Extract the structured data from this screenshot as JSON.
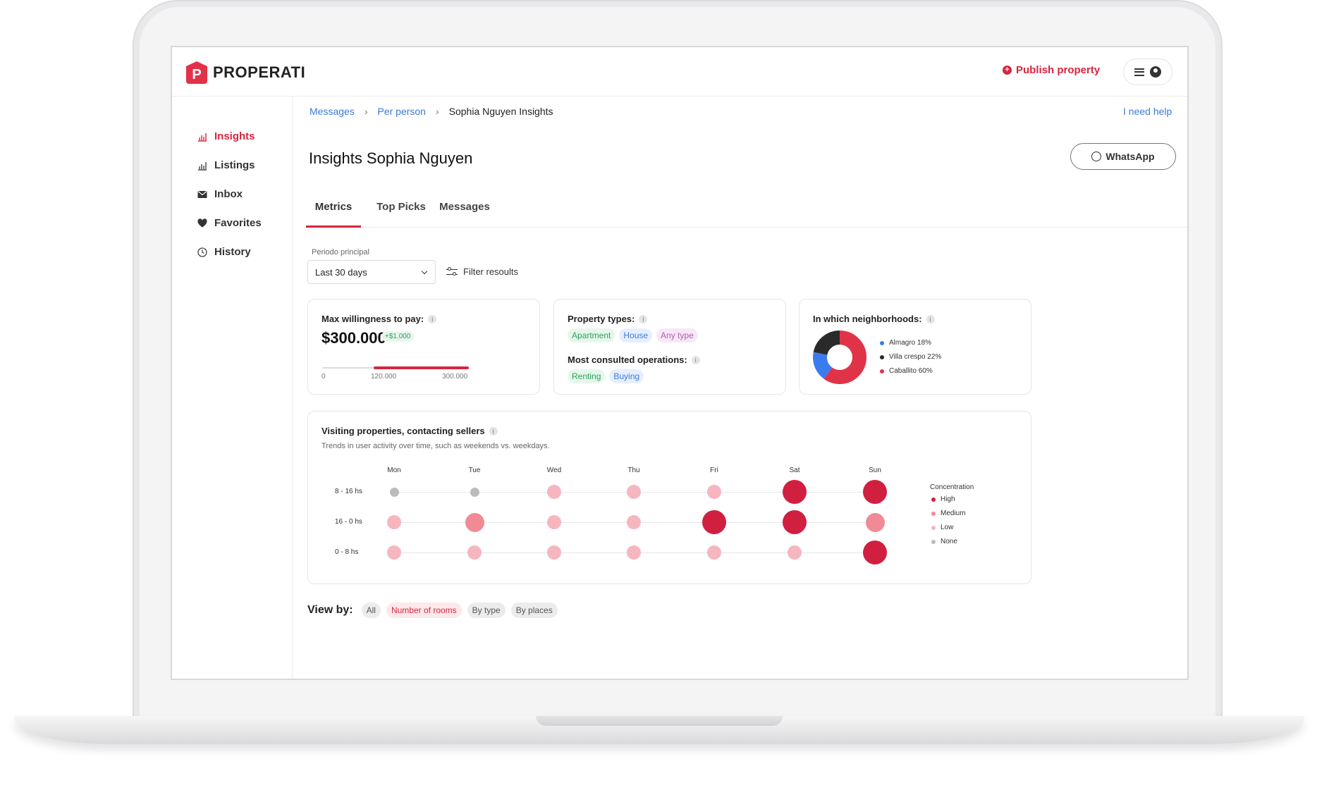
{
  "brand": {
    "name": "PROPERATI",
    "mark": "P"
  },
  "header": {
    "publish_label": "Publish property"
  },
  "sidebar": {
    "items": [
      {
        "label": "Insights",
        "icon": "chart-icon"
      },
      {
        "label": "Listings",
        "icon": "chart-icon"
      },
      {
        "label": "Inbox",
        "icon": "mail-icon"
      },
      {
        "label": "Favorites",
        "icon": "heart-icon"
      },
      {
        "label": "History",
        "icon": "clock-icon"
      }
    ]
  },
  "breadcrumb": {
    "items": [
      "Messages",
      "Per person"
    ],
    "current": "Sophia Nguyen Insights"
  },
  "help_label": "I need help",
  "page_title": "Insights Sophia Nguyen",
  "whatsapp_label": "WhatsApp",
  "tabs": [
    "Metrics",
    "Top Picks",
    "Messages"
  ],
  "period": {
    "label": "Periodo principal",
    "value": "Last 30 days"
  },
  "filter_label": "Filter resoults",
  "willingness": {
    "title": "Max willingness to pay:",
    "price": "$300.000",
    "delta": "+$1.000",
    "range_min": "0",
    "range_low": "120.000",
    "range_high": "300.000"
  },
  "property_types": {
    "title": "Property types:",
    "chips": [
      "Apartment",
      "House",
      "Any type"
    ],
    "ops_title": "Most consulted operations:",
    "ops": [
      "Renting",
      "Buying"
    ]
  },
  "neighborhoods": {
    "title": "In which neighborhoods:",
    "items": [
      {
        "label": "Almagro 18%",
        "value": 18,
        "color": "#3a7bef"
      },
      {
        "label": "Villa crespo 22%",
        "value": 22,
        "color": "#2a2a2a"
      },
      {
        "label": "Caballito 60%",
        "value": 60,
        "color": "#e03347"
      }
    ]
  },
  "activity": {
    "title": "Visiting properties, contacting sellers",
    "subtitle": "Trends in user activity over time, such as weekends vs. weekdays.",
    "days": [
      "Mon",
      "Tue",
      "Wed",
      "Thu",
      "Fri",
      "Sat",
      "Sun"
    ],
    "rows": [
      {
        "label": "8 - 16 hs",
        "levels": [
          "None",
          "None",
          "Low",
          "Low",
          "Low",
          "High",
          "High"
        ]
      },
      {
        "label": "16 - 0 hs",
        "levels": [
          "Low",
          "Medium",
          "Low",
          "Low",
          "High",
          "High",
          "Medium"
        ]
      },
      {
        "label": "0 -  8 hs",
        "levels": [
          "Low",
          "Low",
          "Low",
          "Low",
          "Low",
          "Low",
          "High"
        ]
      }
    ],
    "legend_title": "Concentration",
    "legend": [
      {
        "label": "High",
        "color": "#d01f3f"
      },
      {
        "label": "Medium",
        "color": "#f08a95"
      },
      {
        "label": "Low",
        "color": "#f5b6bf"
      },
      {
        "label": "None",
        "color": "#bbbbbb"
      }
    ]
  },
  "viewby": {
    "label": "View by:",
    "options": [
      "All",
      "Number of rooms",
      "By type",
      "By places"
    ],
    "selected": "Number of rooms"
  }
}
